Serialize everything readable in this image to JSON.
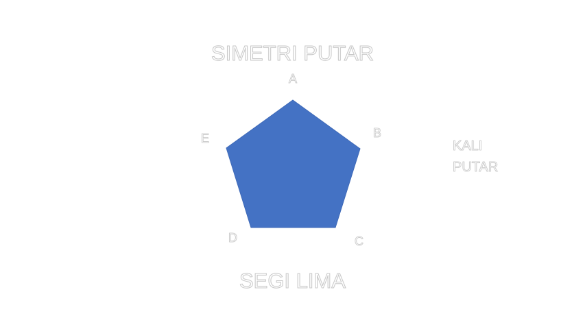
{
  "title": "SIMETRI PUTAR",
  "subtitle": "SEGI LIMA",
  "side_note": "KALI PUTAR",
  "vertices": {
    "a": "A",
    "b": "B",
    "c": "C",
    "d": "D",
    "e": "E"
  },
  "colors": {
    "pentagon_fill": "#4472c4",
    "text_fill": "#ffffff",
    "text_outline": "#c8c8c8"
  }
}
